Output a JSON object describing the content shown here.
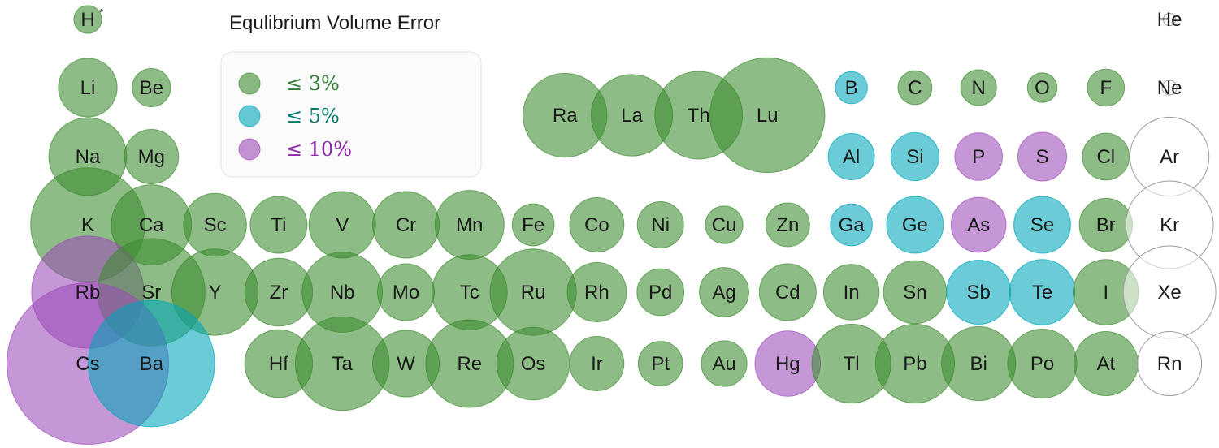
{
  "chart_data": {
    "type": "bubble-periodic-table",
    "title": "Equlibrium Volume Error",
    "legend": {
      "placement": "top-left",
      "entries": [
        {
          "key": "le3",
          "label": "≤ 3%",
          "color": "#3d8b2f",
          "text_color": "#2e7d32"
        },
        {
          "key": "le5",
          "label": "≤ 5%",
          "color": "#00a6b8",
          "text_color": "#00796b"
        },
        {
          "key": "le10",
          "label": "≤ 10%",
          "color": "#9c4bb8",
          "text_color": "#8e24aa"
        }
      ]
    },
    "colors": {
      "le3": "#3d8b2f",
      "le5": "#00a6b8",
      "le10": "#9c4bb8",
      "none": "#ffffff"
    },
    "elements": [
      {
        "symbol": "H",
        "sup": "*",
        "row": 0,
        "col": 0,
        "size": 0.45,
        "cat": "le3"
      },
      {
        "symbol": "He",
        "row": 0,
        "col": 17,
        "size": 0.2,
        "cat": "none"
      },
      {
        "symbol": "Li",
        "row": 1,
        "col": 0,
        "size": 0.95,
        "cat": "le3"
      },
      {
        "symbol": "Be",
        "row": 1,
        "col": 1,
        "size": 0.62,
        "cat": "le3"
      },
      {
        "symbol": "B",
        "row": 1,
        "col": 12,
        "size": 0.52,
        "cat": "le5"
      },
      {
        "symbol": "C",
        "row": 1,
        "col": 13,
        "size": 0.55,
        "cat": "le3"
      },
      {
        "symbol": "N",
        "row": 1,
        "col": 14,
        "size": 0.58,
        "cat": "le3"
      },
      {
        "symbol": "O",
        "row": 1,
        "col": 15,
        "size": 0.48,
        "cat": "le3"
      },
      {
        "symbol": "F",
        "row": 1,
        "col": 16,
        "size": 0.6,
        "cat": "le3"
      },
      {
        "symbol": "Ne",
        "row": 1,
        "col": 17,
        "size": 0.24,
        "cat": "none"
      },
      {
        "symbol": "Na",
        "row": 2,
        "col": 0,
        "size": 1.26,
        "cat": "le3"
      },
      {
        "symbol": "Mg",
        "row": 2,
        "col": 1,
        "size": 0.88,
        "cat": "le3"
      },
      {
        "symbol": "Al",
        "row": 2,
        "col": 12,
        "size": 0.75,
        "cat": "le5"
      },
      {
        "symbol": "Si",
        "row": 2,
        "col": 13,
        "size": 0.78,
        "cat": "le5"
      },
      {
        "symbol": "P",
        "row": 2,
        "col": 14,
        "size": 0.77,
        "cat": "le10"
      },
      {
        "symbol": "S",
        "row": 2,
        "col": 15,
        "size": 0.79,
        "cat": "le10"
      },
      {
        "symbol": "Cl",
        "row": 2,
        "col": 16,
        "size": 0.76,
        "cat": "le3"
      },
      {
        "symbol": "Ar",
        "row": 2,
        "col": 17,
        "size": 1.28,
        "cat": "none"
      },
      {
        "symbol": "K",
        "row": 3,
        "col": 0,
        "size": 1.85,
        "cat": "le3"
      },
      {
        "symbol": "Ca",
        "row": 3,
        "col": 1,
        "size": 1.3,
        "cat": "le3"
      },
      {
        "symbol": "Sc",
        "row": 3,
        "col": 2,
        "size": 1.02,
        "cat": "le3"
      },
      {
        "symbol": "Ti",
        "row": 3,
        "col": 3,
        "size": 0.92,
        "cat": "le3"
      },
      {
        "symbol": "V",
        "row": 3,
        "col": 4,
        "size": 1.08,
        "cat": "le3"
      },
      {
        "symbol": "Cr",
        "row": 3,
        "col": 5,
        "size": 1.08,
        "cat": "le3"
      },
      {
        "symbol": "Mn",
        "row": 3,
        "col": 6,
        "size": 1.12,
        "cat": "le3"
      },
      {
        "symbol": "Fe",
        "row": 3,
        "col": 7,
        "size": 0.68,
        "cat": "le3"
      },
      {
        "symbol": "Co",
        "row": 3,
        "col": 8,
        "size": 0.88,
        "cat": "le3"
      },
      {
        "symbol": "Ni",
        "row": 3,
        "col": 9,
        "size": 0.75,
        "cat": "le3"
      },
      {
        "symbol": "Cu",
        "row": 3,
        "col": 10,
        "size": 0.61,
        "cat": "le3"
      },
      {
        "symbol": "Zn",
        "row": 3,
        "col": 11,
        "size": 0.71,
        "cat": "le3"
      },
      {
        "symbol": "Ga",
        "row": 3,
        "col": 12,
        "size": 0.68,
        "cat": "le5"
      },
      {
        "symbol": "Ge",
        "row": 3,
        "col": 13,
        "size": 0.92,
        "cat": "le5"
      },
      {
        "symbol": "As",
        "row": 3,
        "col": 14,
        "size": 0.89,
        "cat": "le10"
      },
      {
        "symbol": "Se",
        "row": 3,
        "col": 15,
        "size": 0.92,
        "cat": "le5"
      },
      {
        "symbol": "Br",
        "row": 3,
        "col": 16,
        "size": 0.86,
        "cat": "le3"
      },
      {
        "symbol": "Kr",
        "row": 3,
        "col": 17,
        "size": 1.42,
        "cat": "none"
      },
      {
        "symbol": "Rb",
        "row": 4,
        "col": 0,
        "size": 1.82,
        "cat": "le10"
      },
      {
        "symbol": "Sr",
        "row": 4,
        "col": 1,
        "size": 1.74,
        "cat": "le3"
      },
      {
        "symbol": "Y",
        "row": 4,
        "col": 2,
        "size": 1.4,
        "cat": "le3"
      },
      {
        "symbol": "Zr",
        "row": 4,
        "col": 3,
        "size": 1.1,
        "cat": "le3"
      },
      {
        "symbol": "Nb",
        "row": 4,
        "col": 4,
        "size": 1.3,
        "cat": "le3"
      },
      {
        "symbol": "Mo",
        "row": 4,
        "col": 5,
        "size": 0.92,
        "cat": "le3"
      },
      {
        "symbol": "Tc",
        "row": 4,
        "col": 6,
        "size": 1.22,
        "cat": "le3"
      },
      {
        "symbol": "Ru",
        "row": 4,
        "col": 7,
        "size": 1.4,
        "cat": "le3"
      },
      {
        "symbol": "Rh",
        "row": 4,
        "col": 8,
        "size": 0.96,
        "cat": "le3"
      },
      {
        "symbol": "Pd",
        "row": 4,
        "col": 9,
        "size": 0.76,
        "cat": "le3"
      },
      {
        "symbol": "Ag",
        "row": 4,
        "col": 10,
        "size": 0.8,
        "cat": "le3"
      },
      {
        "symbol": "Cd",
        "row": 4,
        "col": 11,
        "size": 0.92,
        "cat": "le3"
      },
      {
        "symbol": "In",
        "row": 4,
        "col": 12,
        "size": 0.9,
        "cat": "le3"
      },
      {
        "symbol": "Sn",
        "row": 4,
        "col": 13,
        "size": 1.02,
        "cat": "le3"
      },
      {
        "symbol": "Sb",
        "row": 4,
        "col": 14,
        "size": 1.04,
        "cat": "le5"
      },
      {
        "symbol": "Te",
        "row": 4,
        "col": 15,
        "size": 1.06,
        "cat": "le5"
      },
      {
        "symbol": "I",
        "row": 4,
        "col": 16,
        "size": 1.06,
        "cat": "le3"
      },
      {
        "symbol": "Xe",
        "row": 4,
        "col": 17,
        "size": 1.5,
        "cat": "none"
      },
      {
        "symbol": "Cs",
        "row": 5,
        "col": 0,
        "size": 2.62,
        "cat": "le10"
      },
      {
        "symbol": "Ba",
        "row": 5,
        "col": 1,
        "size": 2.05,
        "cat": "le5"
      },
      {
        "symbol": "Hf",
        "row": 5,
        "col": 3,
        "size": 1.1,
        "cat": "le3"
      },
      {
        "symbol": "Ta",
        "row": 5,
        "col": 4,
        "size": 1.52,
        "cat": "le3"
      },
      {
        "symbol": "W",
        "row": 5,
        "col": 5,
        "size": 1.08,
        "cat": "le3"
      },
      {
        "symbol": "Re",
        "row": 5,
        "col": 6,
        "size": 1.42,
        "cat": "le3"
      },
      {
        "symbol": "Os",
        "row": 5,
        "col": 7,
        "size": 1.18,
        "cat": "le3"
      },
      {
        "symbol": "Ir",
        "row": 5,
        "col": 8,
        "size": 0.88,
        "cat": "le3"
      },
      {
        "symbol": "Pt",
        "row": 5,
        "col": 9,
        "size": 0.72,
        "cat": "le3"
      },
      {
        "symbol": "Au",
        "row": 5,
        "col": 10,
        "size": 0.74,
        "cat": "le3"
      },
      {
        "symbol": "Hg",
        "row": 5,
        "col": 11,
        "size": 1.06,
        "cat": "le10"
      },
      {
        "symbol": "Tl",
        "row": 5,
        "col": 12,
        "size": 1.28,
        "cat": "le3"
      },
      {
        "symbol": "Pb",
        "row": 5,
        "col": 13,
        "size": 1.28,
        "cat": "le3"
      },
      {
        "symbol": "Bi",
        "row": 5,
        "col": 14,
        "size": 1.2,
        "cat": "le3"
      },
      {
        "symbol": "Po",
        "row": 5,
        "col": 15,
        "size": 1.12,
        "cat": "le3"
      },
      {
        "symbol": "At",
        "row": 5,
        "col": 16,
        "size": 1.04,
        "cat": "le3"
      },
      {
        "symbol": "Rn",
        "row": 5,
        "col": 17,
        "size": 1.04,
        "cat": "none"
      },
      {
        "symbol": "Ra",
        "row": 1.4,
        "col": 7.5,
        "size": 1.36,
        "cat": "le3"
      },
      {
        "symbol": "La",
        "row": 1.4,
        "col": 8.55,
        "size": 1.32,
        "cat": "le3"
      },
      {
        "symbol": "Th",
        "row": 1.4,
        "col": 9.6,
        "size": 1.42,
        "cat": "le3"
      },
      {
        "symbol": "Lu",
        "row": 1.4,
        "col": 10.68,
        "size": 1.86,
        "cat": "le3"
      }
    ]
  }
}
